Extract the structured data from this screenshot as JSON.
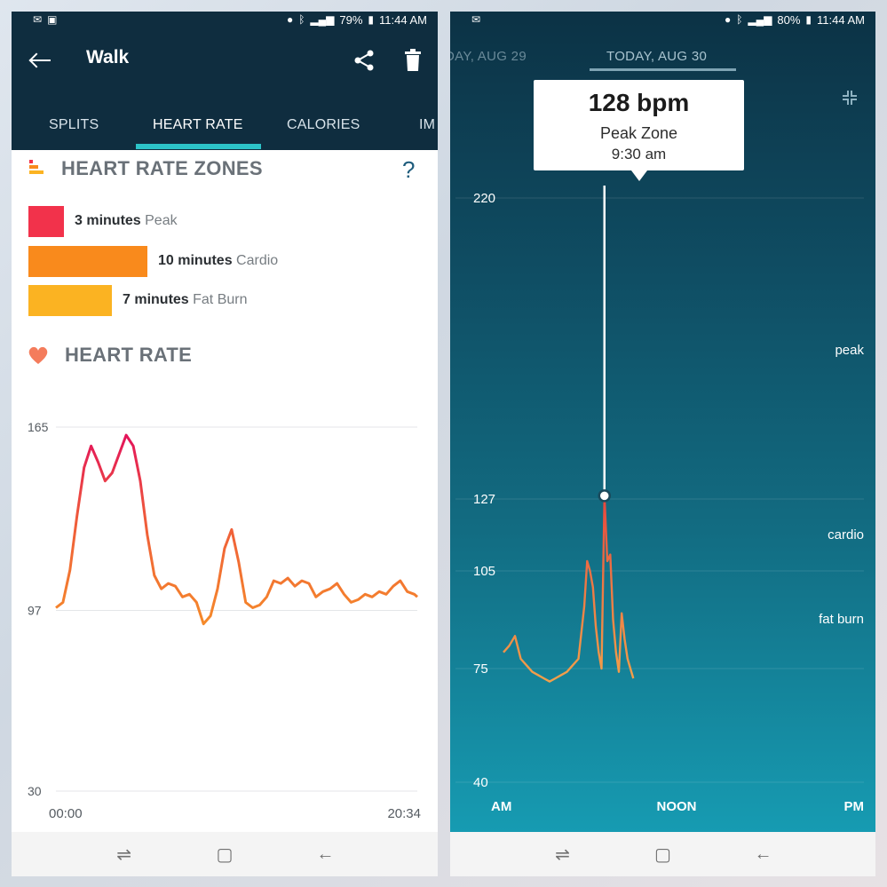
{
  "left": {
    "status": {
      "battery": "79%",
      "time": "11:44 AM"
    },
    "header": {
      "title": "Walk"
    },
    "tabs": [
      "SPLITS",
      "HEART RATE",
      "CALORIES",
      "IM"
    ],
    "zones_section": {
      "title": "HEART RATE ZONES",
      "help": "?",
      "zones": [
        {
          "amount": "3 minutes",
          "name": "Peak",
          "minutes": 3,
          "color": "#f2324b"
        },
        {
          "amount": "10 minutes",
          "name": "Cardio",
          "minutes": 10,
          "color": "#f98a1c"
        },
        {
          "amount": "7 minutes",
          "name": "Fat Burn",
          "minutes": 7,
          "color": "#fbb322"
        }
      ]
    },
    "hr_section": {
      "title": "HEART RATE"
    },
    "chart_data": {
      "type": "line",
      "y_ticks": [
        165,
        97,
        30
      ],
      "x_labels": [
        "00:00",
        "20:34"
      ],
      "ylim": [
        30,
        165
      ],
      "xlim": [
        0,
        20.57
      ],
      "grid": true,
      "x": [
        0,
        0.4,
        0.8,
        1.2,
        1.6,
        2.0,
        2.4,
        2.8,
        3.2,
        3.6,
        4.0,
        4.4,
        4.8,
        5.2,
        5.6,
        6.0,
        6.4,
        6.8,
        7.2,
        7.6,
        8.0,
        8.4,
        8.8,
        9.2,
        9.6,
        10.0,
        10.4,
        10.8,
        11.2,
        11.6,
        12.0,
        12.4,
        12.8,
        13.2,
        13.6,
        14.0,
        14.4,
        14.8,
        15.2,
        15.6,
        16.0,
        16.4,
        16.8,
        17.2,
        17.6,
        18.0,
        18.4,
        18.8,
        19.2,
        19.6,
        20.0,
        20.4,
        20.57
      ],
      "y": [
        98,
        100,
        112,
        132,
        150,
        158,
        152,
        145,
        148,
        155,
        162,
        158,
        145,
        125,
        110,
        105,
        107,
        106,
        102,
        103,
        100,
        92,
        95,
        105,
        120,
        127,
        115,
        100,
        98,
        99,
        102,
        108,
        107,
        109,
        106,
        108,
        107,
        102,
        104,
        105,
        107,
        103,
        100,
        101,
        103,
        102,
        104,
        103,
        106,
        108,
        104,
        103,
        102
      ]
    },
    "nav": [
      "recent-apps",
      "home",
      "back"
    ]
  },
  "right": {
    "status": {
      "battery": "80%",
      "time": "11:44 AM"
    },
    "dates": {
      "prev": "DAY, AUG 29",
      "current": "TODAY, AUG 30"
    },
    "tooltip": {
      "value": "128 bpm",
      "zone": "Peak Zone",
      "time": "9:30 am"
    },
    "zone_labels": [
      "peak",
      "cardio",
      "fat burn"
    ],
    "chart_data": {
      "type": "line",
      "y_ticks": [
        220,
        127,
        105,
        75,
        40
      ],
      "x_labels": [
        "AM",
        "NOON",
        "PM"
      ],
      "ylim": [
        40,
        220
      ],
      "grid": true,
      "selected": {
        "hour": 9.5,
        "value": 128
      },
      "x": [
        6.0,
        6.2,
        6.4,
        6.6,
        6.8,
        7.0,
        7.2,
        7.4,
        7.6,
        7.8,
        8.0,
        8.2,
        8.4,
        8.6,
        8.8,
        8.9,
        9.0,
        9.1,
        9.2,
        9.3,
        9.4,
        9.5,
        9.6,
        9.7,
        9.8,
        9.9,
        10.0,
        10.1,
        10.2,
        10.3,
        10.4,
        10.5
      ],
      "y": [
        80,
        82,
        85,
        78,
        76,
        74,
        73,
        72,
        71,
        72,
        73,
        74,
        76,
        78,
        94,
        108,
        105,
        100,
        88,
        80,
        75,
        128,
        108,
        110,
        90,
        80,
        74,
        92,
        84,
        78,
        75,
        72
      ]
    },
    "nav": [
      "recent-apps",
      "home",
      "back"
    ]
  }
}
